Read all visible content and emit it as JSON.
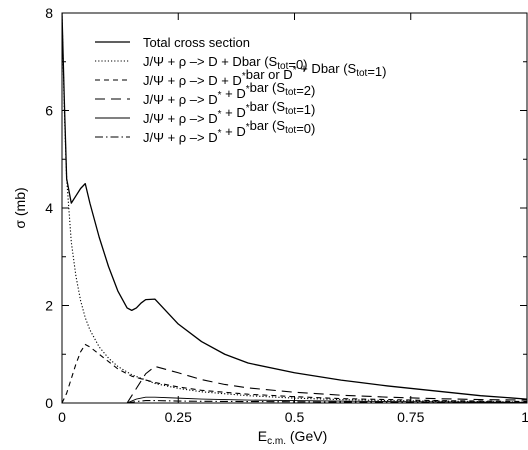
{
  "chart_data": {
    "type": "line",
    "xlabel": "E",
    "xlabel_sub": "c.m.",
    "xlabel_unit": " (GeV)",
    "ylabel": "σ (mb)",
    "xlim": [
      0,
      1
    ],
    "ylim": [
      0,
      8
    ],
    "x_ticks": [
      0,
      0.25,
      0.5,
      0.75,
      1
    ],
    "x_tick_labels": [
      "0",
      "0.25",
      "0.5",
      "0.75",
      "1"
    ],
    "y_ticks": [
      0,
      2,
      4,
      6,
      8
    ],
    "y_tick_labels": [
      "0",
      "2",
      "4",
      "6",
      "8"
    ],
    "grid": false,
    "legend_position": "top-center",
    "series": [
      {
        "dash": "solid",
        "stroke_width": 1.3,
        "legend": [
          {
            "t": "Total cross section"
          }
        ],
        "x": [
          0.0,
          0.005,
          0.01,
          0.02,
          0.03,
          0.04,
          0.05,
          0.06,
          0.08,
          0.1,
          0.12,
          0.14,
          0.15,
          0.16,
          0.17,
          0.18,
          0.2,
          0.25,
          0.3,
          0.35,
          0.4,
          0.5,
          0.6,
          0.7,
          0.8,
          0.9,
          1.0
        ],
        "y": [
          8.0,
          6.2,
          4.6,
          4.1,
          4.25,
          4.4,
          4.5,
          4.1,
          3.4,
          2.8,
          2.3,
          1.95,
          1.9,
          1.95,
          2.05,
          2.12,
          2.13,
          1.62,
          1.26,
          1.0,
          0.82,
          0.62,
          0.47,
          0.35,
          0.25,
          0.15,
          0.08
        ]
      },
      {
        "dash": "dotted",
        "stroke_width": 1.1,
        "legend": [
          {
            "t": "J/Ψ + ρ –> D + Dbar (S"
          },
          {
            "t": "tot",
            "sub": true
          },
          {
            "t": "=0)"
          }
        ],
        "x": [
          0.0,
          0.005,
          0.01,
          0.02,
          0.03,
          0.04,
          0.05,
          0.06,
          0.08,
          0.1,
          0.12,
          0.15,
          0.2,
          0.25,
          0.3,
          0.4,
          0.5,
          0.6,
          0.7,
          0.8,
          0.9,
          1.0
        ],
        "y": [
          8.0,
          6.0,
          4.6,
          3.3,
          2.6,
          2.1,
          1.75,
          1.5,
          1.15,
          0.92,
          0.75,
          0.58,
          0.4,
          0.3,
          0.23,
          0.15,
          0.1,
          0.07,
          0.05,
          0.04,
          0.03,
          0.02
        ]
      },
      {
        "dash": "short-dashed",
        "stroke_width": 1.1,
        "legend": [
          {
            "t": "J/Ψ + ρ –> D + D"
          },
          {
            "t": "*",
            "sup": true
          },
          {
            "t": "bar or D"
          },
          {
            "t": "*",
            "sup": true
          },
          {
            "t": " + Dbar (S"
          },
          {
            "t": "tot",
            "sub": true
          },
          {
            "t": "=1)"
          }
        ],
        "x": [
          0.0,
          0.01,
          0.02,
          0.03,
          0.04,
          0.05,
          0.06,
          0.08,
          0.1,
          0.12,
          0.15,
          0.2,
          0.25,
          0.3,
          0.4,
          0.5,
          0.6,
          0.7,
          0.8,
          0.9,
          1.0
        ],
        "y": [
          0.0,
          0.2,
          0.5,
          0.8,
          1.05,
          1.2,
          1.15,
          1.0,
          0.85,
          0.7,
          0.55,
          0.42,
          0.33,
          0.26,
          0.18,
          0.13,
          0.09,
          0.07,
          0.05,
          0.04,
          0.03
        ]
      },
      {
        "dash": "long-dashed",
        "stroke_width": 1.1,
        "legend": [
          {
            "t": "J/Ψ + ρ –> D"
          },
          {
            "t": "*",
            "sup": true
          },
          {
            "t": " + D"
          },
          {
            "t": "*",
            "sup": true
          },
          {
            "t": "bar (S"
          },
          {
            "t": "tot",
            "sub": true
          },
          {
            "t": "=2)"
          }
        ],
        "x": [
          0.14,
          0.16,
          0.18,
          0.2,
          0.25,
          0.3,
          0.35,
          0.4,
          0.5,
          0.6,
          0.7,
          0.8,
          0.9,
          1.0
        ],
        "y": [
          0.0,
          0.3,
          0.6,
          0.75,
          0.62,
          0.48,
          0.38,
          0.31,
          0.22,
          0.16,
          0.12,
          0.09,
          0.07,
          0.06
        ]
      },
      {
        "dash": "solid",
        "stroke_width": 0.9,
        "legend": [
          {
            "t": "J/Ψ + ρ –> D"
          },
          {
            "t": "*",
            "sup": true
          },
          {
            "t": " + D"
          },
          {
            "t": "*",
            "sup": true
          },
          {
            "t": "bar (S"
          },
          {
            "t": "tot",
            "sub": true
          },
          {
            "t": "=1)"
          }
        ],
        "x": [
          0.14,
          0.16,
          0.18,
          0.2,
          0.25,
          0.3,
          0.4,
          0.5,
          0.6,
          0.7,
          0.8,
          0.9,
          1.0
        ],
        "y": [
          0.0,
          0.08,
          0.12,
          0.12,
          0.1,
          0.08,
          0.06,
          0.05,
          0.04,
          0.03,
          0.025,
          0.02,
          0.015
        ]
      },
      {
        "dash": "dash-dot",
        "stroke_width": 1.1,
        "legend": [
          {
            "t": "J/Ψ + ρ –> D"
          },
          {
            "t": "*",
            "sup": true
          },
          {
            "t": " + D"
          },
          {
            "t": "*",
            "sup": true
          },
          {
            "t": "bar (S"
          },
          {
            "t": "tot",
            "sub": true
          },
          {
            "t": "=0)"
          }
        ],
        "x": [
          0.14,
          0.16,
          0.18,
          0.2,
          0.25,
          0.3,
          0.4,
          0.5,
          0.6,
          0.7,
          0.8,
          0.9,
          1.0
        ],
        "y": [
          0.0,
          0.03,
          0.05,
          0.05,
          0.04,
          0.035,
          0.03,
          0.025,
          0.02,
          0.015,
          0.012,
          0.01,
          0.008
        ]
      }
    ]
  }
}
